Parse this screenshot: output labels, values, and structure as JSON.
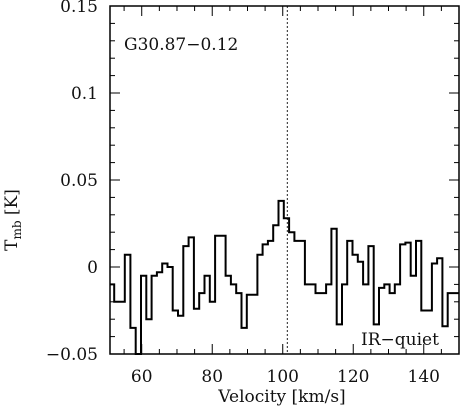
{
  "chart_data": {
    "type": "line",
    "step": true,
    "title": "",
    "source_label": "G30.87−0.12",
    "corner_label": "IR−quiet",
    "xlabel": "Velocity [km/s]",
    "ylabel_main": "T",
    "ylabel_sub": "mb",
    "ylabel_unit": " [K]",
    "xlim": [
      51,
      150
    ],
    "ylim": [
      -0.05,
      0.15
    ],
    "xticks": [
      60,
      80,
      100,
      120,
      140
    ],
    "xtick_labels": [
      "60",
      "80",
      "100",
      "120",
      "140"
    ],
    "yticks": [
      -0.05,
      0,
      0.05,
      0.1,
      0.15
    ],
    "ytick_labels": [
      "−0.05",
      "0",
      "0.05",
      "0.1",
      "0.15"
    ],
    "vline_x": 101.3,
    "grid": false,
    "series": [
      {
        "x": [
          51,
          52.2,
          53.7,
          55.2,
          56.8,
          58.3,
          59.8,
          61.3,
          62.8,
          64.3,
          65.8,
          67.3,
          68.8,
          70.3,
          71.8,
          73.3,
          74.8,
          76.3,
          77.8,
          79.3,
          80.8,
          82.3,
          83.8,
          85.3,
          86.8,
          88.3,
          89.8,
          91.3,
          92.8,
          94.3,
          95.8,
          97.3,
          98.8,
          100.3,
          101.8,
          103.3,
          104.8,
          106.3,
          107.8,
          109.3,
          110.8,
          112.3,
          113.8,
          115.3,
          116.8,
          118.3,
          119.8,
          121.3,
          122.8,
          124.3,
          125.8,
          127.3,
          128.8,
          130.3,
          131.8,
          133.3,
          134.8,
          136.3,
          137.8,
          139.3,
          140.8,
          142.3,
          143.8,
          145.3,
          146.8,
          148.3
        ],
        "values": [
          -0.01,
          -0.02,
          -0.02,
          0.007,
          -0.035,
          -0.05,
          -0.005,
          -0.03,
          -0.005,
          -0.003,
          0.002,
          0,
          -0.025,
          -0.028,
          0.012,
          0.017,
          -0.024,
          -0.015,
          -0.005,
          -0.02,
          0.018,
          0.018,
          -0.005,
          -0.01,
          -0.015,
          -0.035,
          -0.016,
          -0.016,
          0.007,
          0.013,
          0.015,
          0.024,
          0.038,
          0.028,
          0.02,
          0.015,
          0.015,
          -0.01,
          -0.01,
          -0.015,
          -0.015,
          -0.01,
          0.022,
          -0.033,
          -0.01,
          0.015,
          0.007,
          0.003,
          -0.01,
          0.012,
          -0.033,
          -0.012,
          -0.01,
          -0.015,
          -0.01,
          0.013,
          0.014,
          -0.005,
          0.015,
          -0.025,
          -0.025,
          0.002,
          0.005,
          -0.034,
          -0.015,
          -0.015
        ]
      }
    ]
  }
}
